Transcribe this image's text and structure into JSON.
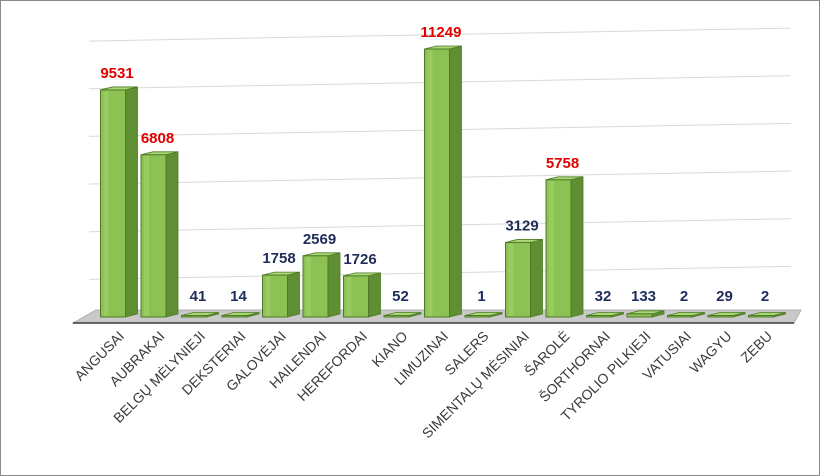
{
  "chart_data": {
    "type": "bar",
    "title": "",
    "xlabel": "",
    "ylabel": "",
    "categories": [
      "ANGUSAI",
      "AUBRAKAI",
      "BELGŲ MĖLYNIEJI",
      "DEKSTERIAI",
      "GALOVĖJAI",
      "HAILENDAI",
      "HEREFORDAI",
      "KIANO",
      "LIMUZINAI",
      "SALERS",
      "SIMENTALŲ MĖSINIAI",
      "ŠAROLĖ",
      "ŠORTHORNAI",
      "TYROLIO PILKIEJI",
      "VATUSIAI",
      "WAGYU",
      "ZEBU"
    ],
    "values": [
      9531,
      6808,
      41,
      14,
      1758,
      2569,
      1726,
      52,
      11249,
      1,
      3129,
      5758,
      32,
      133,
      2,
      29,
      2
    ],
    "ylim": [
      0,
      12000
    ],
    "grid": true,
    "legend": "none",
    "highlight_threshold": 5000,
    "colors": {
      "bar_face": "#8cc153",
      "bar_side": "#5f8f32",
      "bar_top": "#a9d874",
      "bar_edge": "#4e7a28",
      "label_high": "#e00000",
      "label_normal": "#1f2d5a",
      "grid": "#d9d9d9",
      "floor": "#b0b0b0"
    }
  }
}
